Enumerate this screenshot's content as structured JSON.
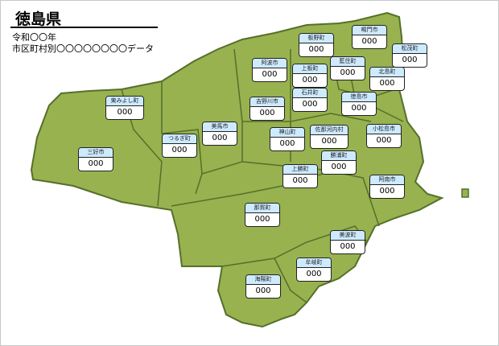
{
  "title": "徳島県",
  "subtitle1": "令和〇〇年",
  "subtitle2": "市区町村別〇〇〇〇〇〇〇〇データ",
  "colors": {
    "land": "#97b24f",
    "border": "#55702a",
    "label_header": "#cdeaff"
  },
  "regions": [
    {
      "name": "板野町",
      "value": "000"
    },
    {
      "name": "鳴門市",
      "value": "000"
    },
    {
      "name": "松茂町",
      "value": "000"
    },
    {
      "name": "阿波市",
      "value": "000"
    },
    {
      "name": "上板町",
      "value": "000"
    },
    {
      "name": "藍住町",
      "value": "000"
    },
    {
      "name": "北島町",
      "value": "000"
    },
    {
      "name": "石井町",
      "value": "000"
    },
    {
      "name": "徳島市",
      "value": "000"
    },
    {
      "name": "吉野川市",
      "value": "000"
    },
    {
      "name": "東みよし町",
      "value": "000"
    },
    {
      "name": "美馬市",
      "value": "000"
    },
    {
      "name": "つるぎ町",
      "value": "000"
    },
    {
      "name": "三好市",
      "value": "000"
    },
    {
      "name": "神山町",
      "value": "000"
    },
    {
      "name": "佐那河内村",
      "value": "000"
    },
    {
      "name": "小松島市",
      "value": "000"
    },
    {
      "name": "勝浦町",
      "value": "000"
    },
    {
      "name": "上勝町",
      "value": "000"
    },
    {
      "name": "阿南市",
      "value": "000"
    },
    {
      "name": "那賀町",
      "value": "000"
    },
    {
      "name": "美波町",
      "value": "000"
    },
    {
      "name": "牟岐町",
      "value": "000"
    },
    {
      "name": "海陽町",
      "value": "000"
    }
  ]
}
